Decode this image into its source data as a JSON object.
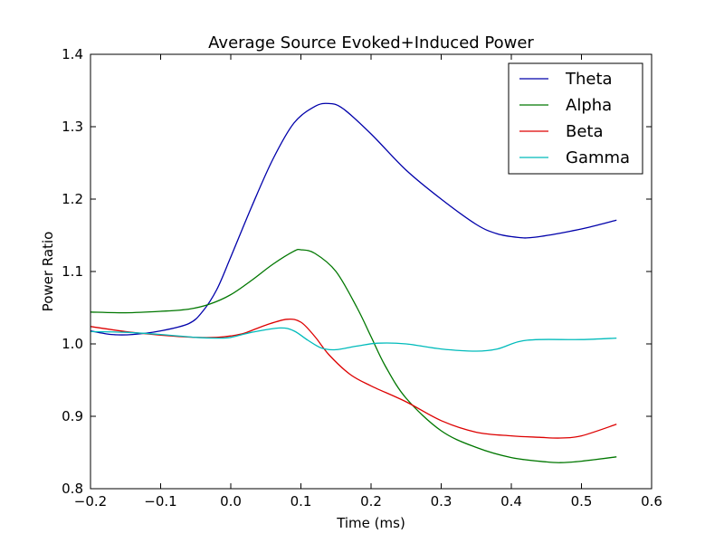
{
  "chart_data": {
    "type": "line",
    "title": "Average Source Evoked+Induced Power",
    "xlabel": "Time (ms)",
    "ylabel": "Power Ratio",
    "xlim": [
      -0.2,
      0.6
    ],
    "ylim": [
      0.8,
      1.4
    ],
    "xticks": [
      "-0.2",
      "-0.1",
      "0.0",
      "0.1",
      "0.2",
      "0.3",
      "0.4",
      "0.5",
      "0.6"
    ],
    "yticks": [
      "0.8",
      "0.9",
      "1.0",
      "1.1",
      "1.2",
      "1.3",
      "1.4"
    ],
    "grid": false,
    "legend_position": "top-right",
    "series": [
      {
        "name": "Theta",
        "color": "#0000aa",
        "points": [
          [
            -0.2,
            1.018
          ],
          [
            -0.17,
            1.013
          ],
          [
            -0.14,
            1.013
          ],
          [
            -0.1,
            1.018
          ],
          [
            -0.06,
            1.028
          ],
          [
            -0.04,
            1.045
          ],
          [
            -0.02,
            1.075
          ],
          [
            0.0,
            1.12
          ],
          [
            0.03,
            1.19
          ],
          [
            0.06,
            1.255
          ],
          [
            0.09,
            1.305
          ],
          [
            0.12,
            1.328
          ],
          [
            0.14,
            1.332
          ],
          [
            0.16,
            1.325
          ],
          [
            0.2,
            1.29
          ],
          [
            0.25,
            1.24
          ],
          [
            0.3,
            1.2
          ],
          [
            0.35,
            1.165
          ],
          [
            0.38,
            1.152
          ],
          [
            0.41,
            1.147
          ],
          [
            0.43,
            1.147
          ],
          [
            0.47,
            1.153
          ],
          [
            0.51,
            1.161
          ],
          [
            0.55,
            1.171
          ]
        ]
      },
      {
        "name": "Alpha",
        "color": "#007700",
        "points": [
          [
            -0.2,
            1.044
          ],
          [
            -0.15,
            1.043
          ],
          [
            -0.1,
            1.045
          ],
          [
            -0.06,
            1.048
          ],
          [
            -0.03,
            1.055
          ],
          [
            0.0,
            1.068
          ],
          [
            0.03,
            1.088
          ],
          [
            0.06,
            1.11
          ],
          [
            0.09,
            1.128
          ],
          [
            0.1,
            1.13
          ],
          [
            0.12,
            1.125
          ],
          [
            0.15,
            1.1
          ],
          [
            0.18,
            1.05
          ],
          [
            0.2,
            1.01
          ],
          [
            0.22,
            0.97
          ],
          [
            0.25,
            0.925
          ],
          [
            0.3,
            0.88
          ],
          [
            0.35,
            0.857
          ],
          [
            0.4,
            0.843
          ],
          [
            0.45,
            0.837
          ],
          [
            0.47,
            0.836
          ],
          [
            0.5,
            0.838
          ],
          [
            0.55,
            0.844
          ]
        ]
      },
      {
        "name": "Beta",
        "color": "#dd0000",
        "points": [
          [
            -0.2,
            1.024
          ],
          [
            -0.15,
            1.017
          ],
          [
            -0.1,
            1.012
          ],
          [
            -0.05,
            1.009
          ],
          [
            -0.02,
            1.009
          ],
          [
            0.0,
            1.011
          ],
          [
            0.02,
            1.015
          ],
          [
            0.05,
            1.026
          ],
          [
            0.08,
            1.034
          ],
          [
            0.1,
            1.03
          ],
          [
            0.12,
            1.01
          ],
          [
            0.14,
            0.985
          ],
          [
            0.17,
            0.958
          ],
          [
            0.2,
            0.942
          ],
          [
            0.25,
            0.92
          ],
          [
            0.3,
            0.894
          ],
          [
            0.35,
            0.878
          ],
          [
            0.4,
            0.873
          ],
          [
            0.44,
            0.871
          ],
          [
            0.47,
            0.87
          ],
          [
            0.5,
            0.873
          ],
          [
            0.55,
            0.889
          ]
        ]
      },
      {
        "name": "Gamma",
        "color": "#00bbbb",
        "points": [
          [
            -0.2,
            1.017
          ],
          [
            -0.15,
            1.016
          ],
          [
            -0.1,
            1.013
          ],
          [
            -0.05,
            1.009
          ],
          [
            -0.02,
            1.008
          ],
          [
            0.0,
            1.009
          ],
          [
            0.03,
            1.016
          ],
          [
            0.07,
            1.022
          ],
          [
            0.09,
            1.018
          ],
          [
            0.11,
            1.005
          ],
          [
            0.13,
            0.994
          ],
          [
            0.15,
            0.992
          ],
          [
            0.18,
            0.997
          ],
          [
            0.21,
            1.001
          ],
          [
            0.25,
            1.0
          ],
          [
            0.3,
            0.993
          ],
          [
            0.35,
            0.99
          ],
          [
            0.38,
            0.993
          ],
          [
            0.41,
            1.003
          ],
          [
            0.44,
            1.006
          ],
          [
            0.5,
            1.006
          ],
          [
            0.55,
            1.008
          ]
        ]
      }
    ]
  }
}
